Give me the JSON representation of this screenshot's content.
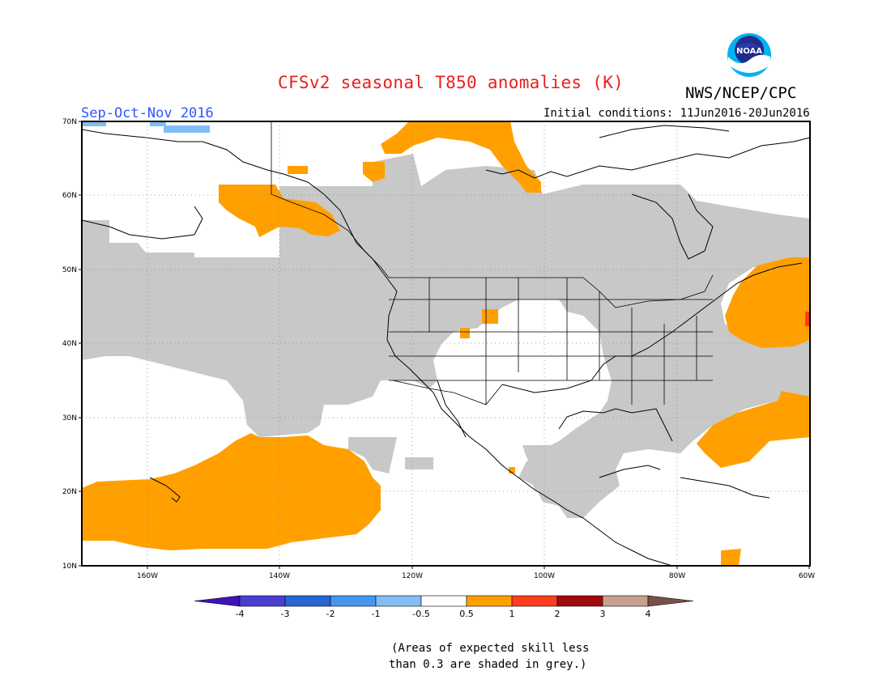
{
  "header": {
    "title": "CFSv2 seasonal T850 anomalies (K)",
    "agency": "NWS/NCEP/CPC",
    "period": "Sep-Oct-Nov 2016",
    "initial_conditions": "Initial conditions: 11Jun2016-20Jun2016",
    "logo_text": "NOAA"
  },
  "map": {
    "lat_labels": [
      "70N",
      "60N",
      "50N",
      "40N",
      "30N",
      "20N",
      "10N"
    ],
    "lon_labels": [
      "160W",
      "140W",
      "120W",
      "100W",
      "80W",
      "60W"
    ]
  },
  "legend": {
    "labels": [
      "-4",
      "-3",
      "-2",
      "-1",
      "-0.5",
      "0.5",
      "1",
      "2",
      "3",
      "4"
    ],
    "colors": [
      "#3c14b4",
      "#4b3cd2",
      "#2864d2",
      "#4696f0",
      "#82bef5",
      "#ffffff",
      "#ffa000",
      "#ff3c1e",
      "#a00a0a",
      "#c8a090",
      "#785046"
    ]
  },
  "colors": {
    "positive_anomaly": "#ffa000",
    "low_skill_grey": "#c8c8c8",
    "negative_anomaly": "#82bef5",
    "strong_positive": "#ff3c1e"
  },
  "note": {
    "line1": "(Areas of expected skill less",
    "line2": "than 0.3 are shaded in grey.)"
  }
}
